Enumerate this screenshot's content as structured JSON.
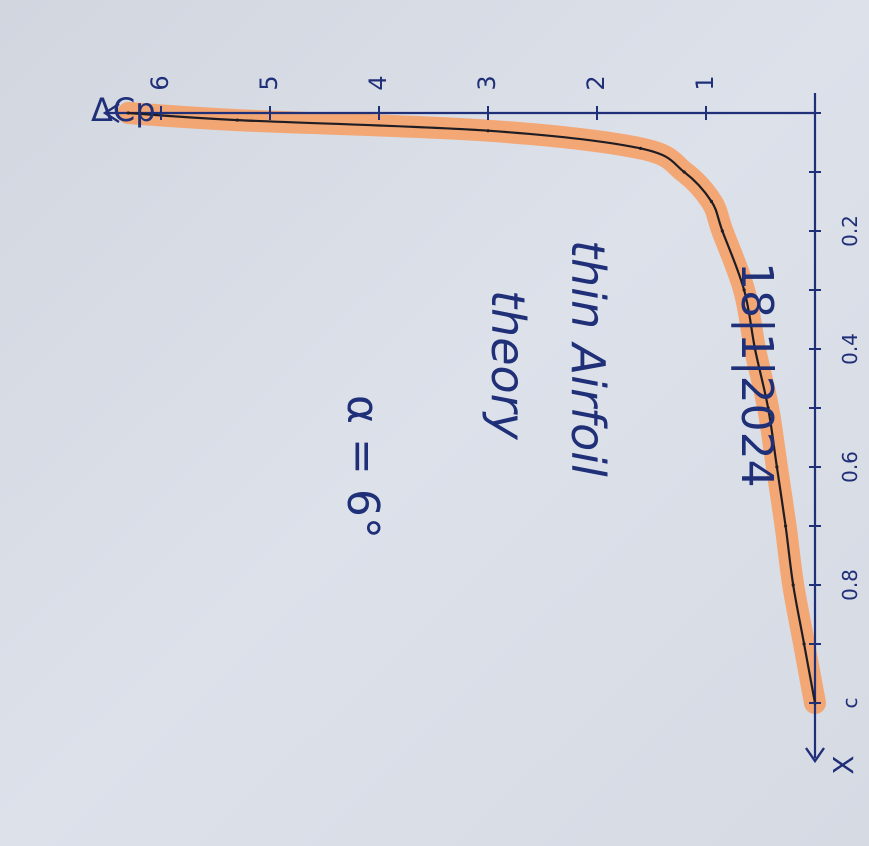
{
  "chart_data": {
    "type": "line",
    "title": "",
    "xlabel": "X",
    "ylabel": "ΔCp",
    "x_tick_labels": [
      "c",
      "0.8",
      "0.6",
      "0.4",
      "0.2"
    ],
    "y_tick_labels": [
      "1",
      "2",
      "3",
      "4",
      "5",
      "6"
    ],
    "x": [
      0,
      0.012,
      0.03,
      0.06,
      0.1,
      0.15,
      0.2,
      0.3,
      0.4,
      0.5,
      0.6,
      0.7,
      0.8,
      0.9,
      1.0
    ],
    "series": [
      {
        "values": [
          6.3,
          5.3,
          3.0,
          1.6,
          1.2,
          0.95,
          0.85,
          0.65,
          0.55,
          0.43,
          0.35,
          0.27,
          0.2,
          0.1,
          0.0
        ]
      }
    ],
    "xlim": [
      0,
      1.0
    ],
    "ylim": [
      0,
      6.3
    ]
  },
  "notes": {
    "date": "18|1|2024",
    "line1": "thin Airfoil",
    "line2": "theory",
    "alpha": "α = 6°"
  },
  "colors": {
    "paper": "#d9dde6",
    "ink": "#1f2f78",
    "pencil": "#1e1d24",
    "highlight": "#f4a26a"
  }
}
